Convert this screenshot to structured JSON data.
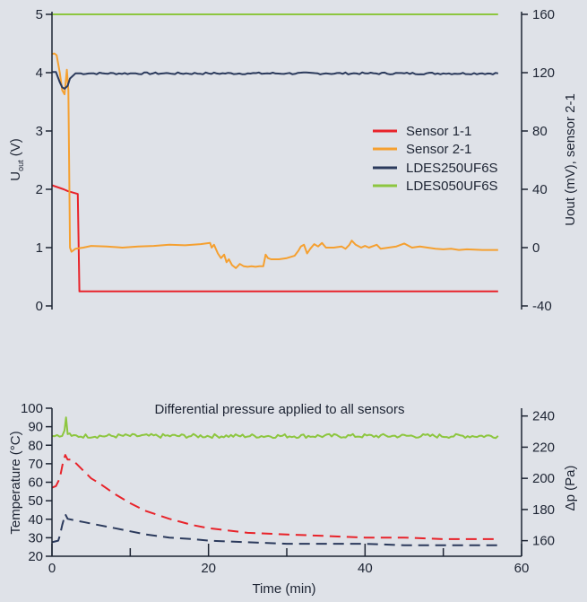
{
  "colors": {
    "sensor_1_1": "#e8232a",
    "sensor_2_1": "#f5a030",
    "ldes250": "#2b3a5c",
    "ldes050": "#8dc63f",
    "axis": "#1d2433",
    "background": "#dfe2e8"
  },
  "chart_data": [
    {
      "type": "line",
      "x_unit": "min",
      "xlim": [
        0,
        60
      ],
      "ylabel_left": "U_out (V)",
      "ylabel_left_main": "U",
      "ylabel_left_sub": "out",
      "ylabel_left_unit": " (V)",
      "ylabel_right": "Uout (mV), sensor 2-1",
      "ylim_left": [
        0,
        5
      ],
      "ylim_right": [
        -40,
        160
      ],
      "yticks_left": [
        "0",
        "1",
        "2",
        "3",
        "4",
        "5"
      ],
      "yticks_right": [
        "-40",
        "0",
        "40",
        "80",
        "120",
        "160"
      ],
      "legend_position": "right-middle",
      "series": [
        {
          "name": "Sensor 1-1",
          "axis": "left",
          "color_key": "sensor_1_1",
          "x": [
            0,
            1.5,
            2.0,
            3.3,
            3.5,
            3.6,
            57
          ],
          "y": [
            2.07,
            2.0,
            1.97,
            1.92,
            0.25,
            0.25,
            0.25
          ]
        },
        {
          "name": "Sensor 2-1",
          "axis": "left",
          "color_key": "sensor_2_1",
          "x": [
            0,
            0.3,
            0.6,
            1.0,
            1.3,
            1.6,
            1.9,
            2.1,
            2.3,
            2.5,
            3,
            4,
            5,
            7,
            9,
            11,
            13,
            15,
            17,
            19,
            20.2,
            20.4,
            20.7,
            21.2,
            21.6,
            22,
            22.3,
            22.6,
            23,
            23.5,
            24,
            24.5,
            25,
            25.5,
            26,
            26.5,
            27,
            27.3,
            27.6,
            28,
            29,
            30,
            31,
            31.5,
            31.8,
            32.2,
            32.6,
            33,
            33.5,
            34,
            34.5,
            35,
            36,
            37,
            37.5,
            38,
            38.3,
            38.8,
            39.5,
            40,
            40.5,
            41.5,
            42,
            43,
            44,
            45,
            46,
            47,
            48,
            49,
            50,
            51,
            52,
            53,
            55,
            57
          ],
          "y": [
            4.32,
            4.33,
            4.3,
            4.0,
            3.7,
            3.63,
            4.05,
            3.7,
            1.0,
            0.93,
            0.98,
            1.0,
            1.03,
            1.02,
            1.0,
            1.02,
            1.03,
            1.05,
            1.04,
            1.06,
            1.08,
            1.0,
            1.05,
            0.9,
            0.82,
            0.88,
            0.75,
            0.8,
            0.7,
            0.65,
            0.72,
            0.68,
            0.67,
            0.68,
            0.67,
            0.68,
            0.68,
            0.88,
            0.82,
            0.8,
            0.8,
            0.82,
            0.86,
            0.95,
            1.02,
            1.05,
            0.9,
            0.98,
            1.06,
            1.02,
            1.08,
            1.0,
            1.0,
            1.02,
            0.98,
            1.05,
            1.12,
            1.05,
            1.0,
            1.03,
            1.0,
            1.05,
            0.98,
            1.0,
            1.02,
            1.07,
            1.0,
            1.02,
            1.0,
            0.98,
            0.97,
            0.98,
            0.96,
            0.97,
            0.96,
            0.96
          ]
        },
        {
          "name": "LDES250UF6S",
          "axis": "right",
          "color_key": "ldes250",
          "x": [
            0,
            0.5,
            1.0,
            1.3,
            1.6,
            2.0,
            2.3,
            3,
            5,
            10,
            15,
            20,
            25,
            30,
            35,
            40,
            45,
            50,
            55,
            57
          ],
          "y": [
            120.5,
            120.5,
            113.5,
            110,
            109,
            111,
            116,
            119.5,
            119.5,
            119.5,
            119.5,
            119.5,
            119.5,
            119.5,
            119.5,
            119.5,
            119.5,
            119.5,
            119.5,
            119.5
          ]
        },
        {
          "name": "LDES050UF6S",
          "axis": "left",
          "color_key": "ldes050",
          "x": [
            0,
            57
          ],
          "y": [
            5.0,
            5.0
          ]
        }
      ]
    },
    {
      "type": "line",
      "annotation": "Differential pressure applied to all sensors",
      "xlabel": "Time (min)",
      "xlim": [
        0,
        60
      ],
      "xticks": [
        "0",
        "20",
        "40",
        "60"
      ],
      "ylabel_left": "Temperature (°C)",
      "ylabel_right": "Δp (Pa)",
      "ylim_left": [
        20,
        100
      ],
      "ylim_right": [
        150,
        245
      ],
      "yticks_left": [
        "20",
        "30",
        "40",
        "50",
        "60",
        "70",
        "80",
        "90",
        "100"
      ],
      "yticks_right": [
        "160",
        "180",
        "200",
        "220",
        "240"
      ],
      "series": [
        {
          "axis": "right",
          "color_key": "sensor_1_1",
          "dashed": true,
          "x": [
            0,
            0.5,
            1.0,
            1.4,
            1.7,
            2.0,
            2.5,
            3,
            4,
            5,
            6,
            8,
            10,
            12,
            15,
            18,
            20,
            25,
            30,
            35,
            40,
            45,
            50,
            55,
            57
          ],
          "y": [
            194,
            195,
            200,
            210,
            215,
            212,
            212,
            210,
            205,
            200,
            197,
            190,
            184,
            179,
            174,
            170,
            168,
            165,
            164,
            163,
            162,
            162,
            161,
            161,
            161
          ]
        },
        {
          "axis": "right",
          "color_key": "ldes250",
          "dashed": true,
          "x": [
            0,
            0.8,
            1.0,
            1.3,
            1.7,
            2.0,
            3,
            4,
            6,
            8,
            10,
            12,
            15,
            18,
            20,
            25,
            30,
            35,
            40,
            45,
            50,
            55,
            57
          ],
          "y": [
            159,
            160,
            163,
            170,
            177,
            174,
            173,
            172,
            170,
            168,
            166,
            164,
            162,
            161,
            160,
            159,
            158,
            158,
            158,
            157,
            157,
            157,
            157
          ]
        },
        {
          "axis": "left",
          "color_key": "ldes050",
          "dashed": false,
          "noisy": true,
          "x": [
            0,
            1.3,
            1.6,
            1.8,
            2.0,
            2.5,
            57
          ],
          "y": [
            85,
            85,
            88,
            95,
            86,
            85,
            85
          ]
        }
      ]
    }
  ]
}
